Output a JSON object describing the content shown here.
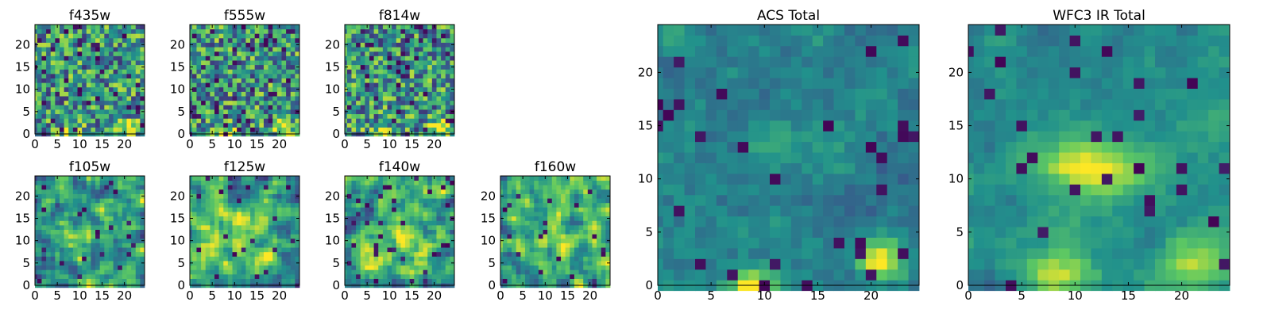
{
  "figure": {
    "colormap": "viridis",
    "colormap_stops": [
      "#440154",
      "#3b528b",
      "#21918c",
      "#5ec962",
      "#fde725"
    ]
  },
  "chart_data": [
    {
      "type": "heatmap",
      "title": "f435w",
      "grid_size": 25,
      "xticks": [
        0,
        5,
        10,
        15,
        20
      ],
      "yticks": [
        0,
        5,
        10,
        15,
        20
      ],
      "grid": false,
      "texture": "noise",
      "seed": 11
    },
    {
      "type": "heatmap",
      "title": "f555w",
      "grid_size": 25,
      "xticks": [
        0,
        5,
        10,
        15,
        20
      ],
      "yticks": [
        0,
        5,
        10,
        15,
        20
      ],
      "grid": false,
      "texture": "noise",
      "seed": 23
    },
    {
      "type": "heatmap",
      "title": "f814w",
      "grid_size": 25,
      "xticks": [
        0,
        5,
        10,
        15,
        20
      ],
      "yticks": [
        0,
        5,
        10,
        15,
        20
      ],
      "grid": false,
      "texture": "noise",
      "seed": 37
    },
    {
      "type": "heatmap",
      "title": "f105w",
      "grid_size": 25,
      "xticks": [
        0,
        5,
        10,
        15,
        20
      ],
      "yticks": [
        0,
        5,
        10,
        15,
        20
      ],
      "grid": false,
      "texture": "smooth",
      "seed": 41
    },
    {
      "type": "heatmap",
      "title": "f125w",
      "grid_size": 25,
      "xticks": [
        0,
        5,
        10,
        15,
        20
      ],
      "yticks": [
        0,
        5,
        10,
        15,
        20
      ],
      "grid": false,
      "texture": "smooth",
      "seed": 53
    },
    {
      "type": "heatmap",
      "title": "f140w",
      "grid_size": 25,
      "xticks": [
        0,
        5,
        10,
        15,
        20
      ],
      "yticks": [
        0,
        5,
        10,
        15,
        20
      ],
      "grid": false,
      "texture": "smooth",
      "seed": 67
    },
    {
      "type": "heatmap",
      "title": "f160w",
      "grid_size": 25,
      "xticks": [
        0,
        5,
        10,
        15,
        20
      ],
      "yticks": [
        0,
        5,
        10,
        15,
        20
      ],
      "grid": false,
      "texture": "smooth",
      "seed": 79
    },
    {
      "type": "heatmap",
      "title": "ACS Total",
      "grid_size": 25,
      "xticks": [
        0,
        5,
        10,
        15,
        20
      ],
      "yticks": [
        0,
        5,
        10,
        15,
        20
      ],
      "grid": false,
      "texture": "acs",
      "seed": 83
    },
    {
      "type": "heatmap",
      "title": "WFC3 IR Total",
      "grid_size": 25,
      "xticks": [
        0,
        5,
        10,
        15,
        20
      ],
      "yticks": [
        0,
        5,
        10,
        15,
        20
      ],
      "grid": false,
      "texture": "wfc3",
      "seed": 97
    }
  ]
}
